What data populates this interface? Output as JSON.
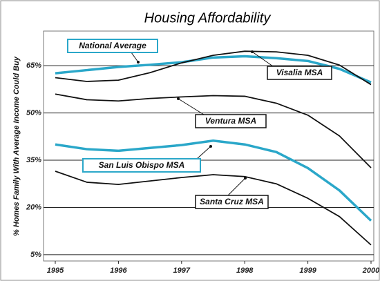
{
  "chart_data": {
    "type": "line",
    "title": "Housing Affordability",
    "y_label": "% Homes Family With Average Income Could Buy",
    "x": [
      1995,
      1995.5,
      1996,
      1996.5,
      1997,
      1997.5,
      1998,
      1998.5,
      1999,
      1999.5,
      2000
    ],
    "series": [
      {
        "name": "National Average",
        "color": "#2aa7c9",
        "values": [
          62.6,
          63.6,
          64.6,
          65.3,
          66.1,
          67.6,
          68,
          67.4,
          66.5,
          64,
          59.7
        ]
      },
      {
        "name": "Visalia MSA",
        "color": "#111111",
        "values": [
          61.2,
          60,
          60.4,
          62.8,
          65.9,
          68.3,
          69.6,
          69.4,
          68.3,
          65.2,
          59
        ]
      },
      {
        "name": "Ventura MSA",
        "color": "#111111",
        "values": [
          56,
          54.2,
          53.8,
          54.6,
          55.1,
          55.5,
          55.3,
          53.1,
          49.3,
          42.7,
          32.6
        ]
      },
      {
        "name": "San Luis Obispo MSA",
        "color": "#2aa7c9",
        "values": [
          40,
          38.5,
          38,
          38.9,
          39.8,
          41.2,
          40,
          37.6,
          32.5,
          25.4,
          15.8
        ]
      },
      {
        "name": "Santa Cruz MSA",
        "color": "#111111",
        "values": [
          31.5,
          28,
          27.3,
          28.4,
          29.5,
          30.4,
          29.8,
          27.5,
          22.9,
          17.1,
          8.1
        ]
      }
    ],
    "xlim": [
      1995,
      2000
    ],
    "xticks": [
      1995,
      1996,
      1997,
      1998,
      1999,
      2000
    ],
    "ylim": [
      3,
      76
    ],
    "yticks": [
      {
        "value": 5,
        "label": "5%"
      },
      {
        "value": 20,
        "label": "20%"
      },
      {
        "value": 35,
        "label": "35%"
      },
      {
        "value": 50,
        "label": "50%"
      },
      {
        "value": 65,
        "label": "65%"
      }
    ],
    "grid": true
  }
}
